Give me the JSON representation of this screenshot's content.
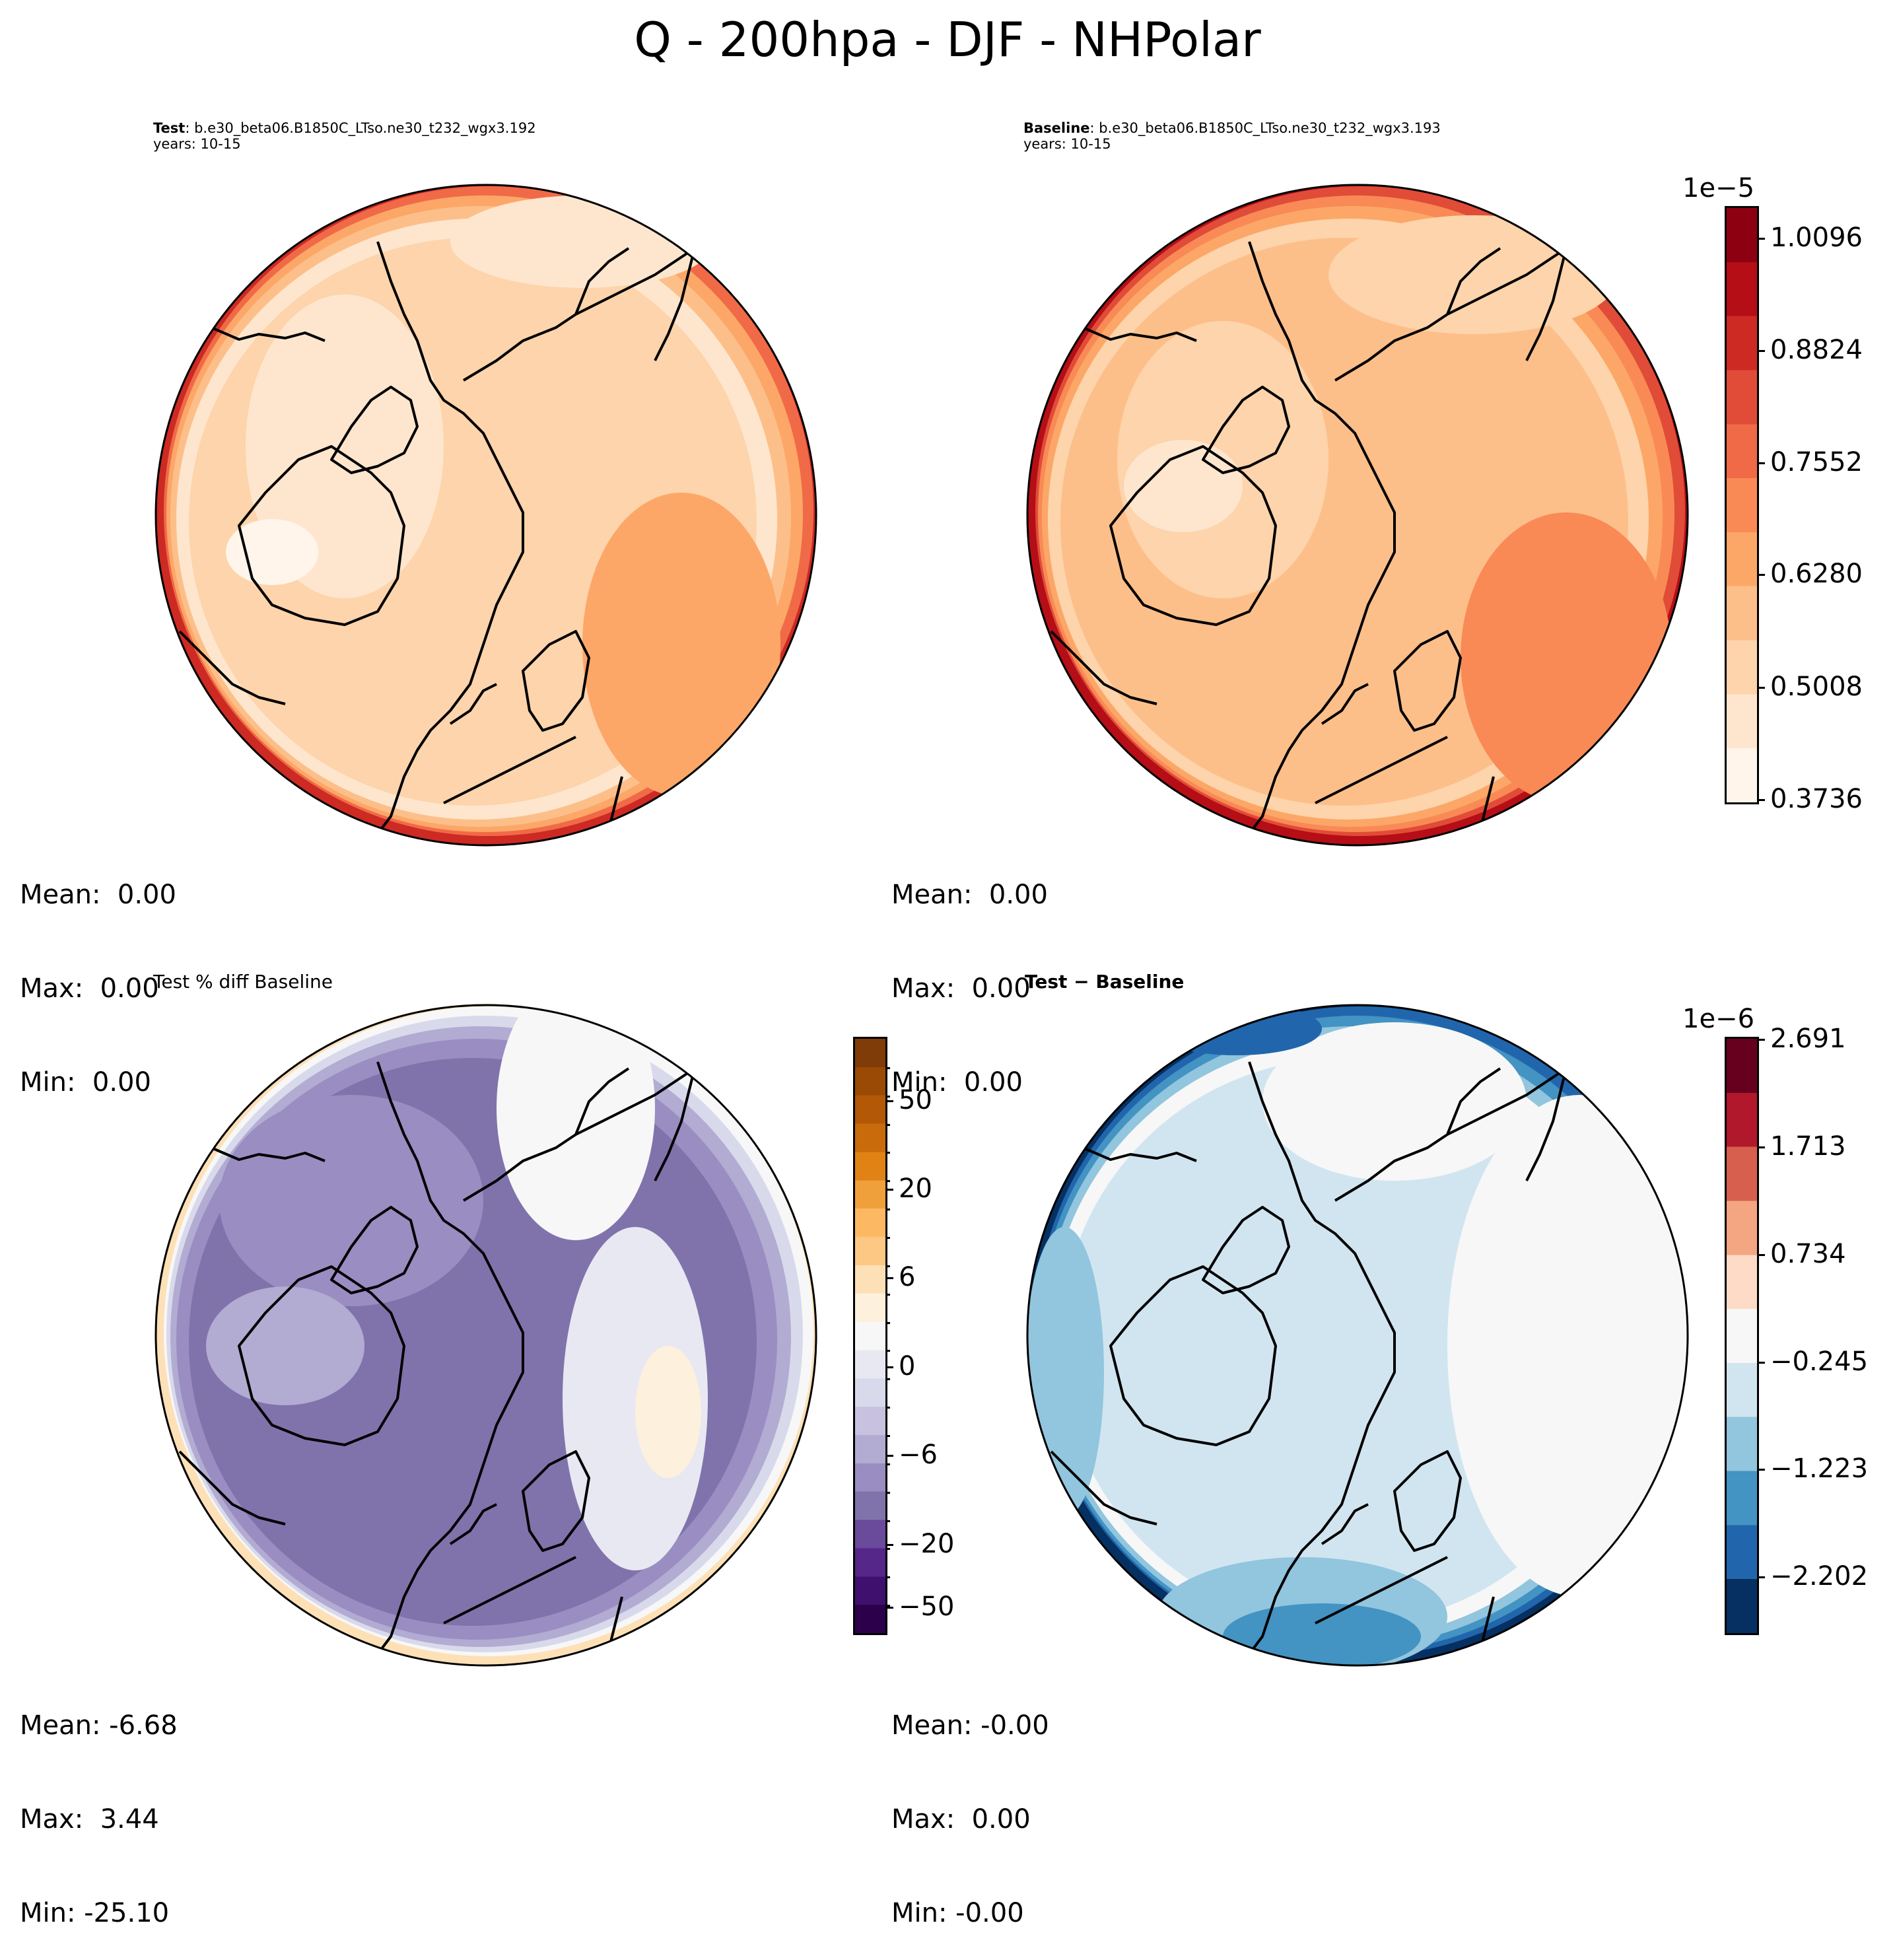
{
  "figure_title": "Q - 200hpa - DJF - NHPolar",
  "panels": {
    "test": {
      "label": "Test",
      "case": ": b.e30_beta06.B1850C_LTso.ne30_t232_wgx3.192",
      "years": "years: 10-15",
      "stats": {
        "mean": "Mean:  0.00",
        "max": "Max:  0.00",
        "min": "Min:  0.00"
      }
    },
    "baseline": {
      "label": "Baseline",
      "case": ": b.e30_beta06.B1850C_LTso.ne30_t232_wgx3.193",
      "years": "years: 10-15",
      "stats": {
        "mean": "Mean:  0.00",
        "max": "Max:  0.00",
        "min": "Min:  0.00"
      }
    },
    "pctdiff": {
      "title": "Test % diff Baseline",
      "stats": {
        "mean": "Mean: -6.68",
        "max": "Max:  3.44",
        "min": "Min: -25.10"
      }
    },
    "diff": {
      "title": "Test − Baseline",
      "stats": {
        "mean": "Mean: -0.00",
        "max": "Max:  0.00",
        "min": "Min: -0.00"
      }
    }
  },
  "colorbars": {
    "main": {
      "exponent": "1e−5",
      "labels": [
        "1.0096",
        "0.8824",
        "0.7552",
        "0.6280",
        "0.5008",
        "0.3736"
      ],
      "colors": [
        "#fff5eb",
        "#fee6ce",
        "#fdd4ab",
        "#fdbf8a",
        "#fca768",
        "#f98a56",
        "#f06a47",
        "#e04c38",
        "#cc2a23",
        "#b50e16",
        "#8c0012"
      ]
    },
    "pct": {
      "labels": [
        "50",
        "20",
        "6",
        "0",
        "−6",
        "−20",
        "−50"
      ],
      "colors": [
        "#2d004b",
        "#40106e",
        "#542788",
        "#6a4a9b",
        "#8073ac",
        "#9a8dc2",
        "#b2abd2",
        "#c8c2e0",
        "#d8daeb",
        "#e8e8f2",
        "#f7f7f7",
        "#fdf0dc",
        "#fee0b6",
        "#fdc884",
        "#fdb863",
        "#f0a03b",
        "#e08214",
        "#c96a0b",
        "#b35806",
        "#9a4a05",
        "#7f3b08"
      ]
    },
    "diff": {
      "exponent": "1e−6",
      "labels": [
        "2.691",
        "1.713",
        "0.734",
        "−0.245",
        "−1.223",
        "−2.202"
      ],
      "colors": [
        "#053061",
        "#2166ac",
        "#4393c3",
        "#92c5de",
        "#d1e5f0",
        "#f7f7f7",
        "#fddbc7",
        "#f4a582",
        "#d6604d",
        "#b2182b",
        "#67001f"
      ]
    }
  },
  "map_fields": {
    "test": {
      "base": "#fdd4ab",
      "ring": [
        "#fee6ce",
        "#fdbf8a",
        "#fca768",
        "#f06a47",
        "#cc2a23"
      ]
    },
    "baseline": {
      "base": "#fdbf8a",
      "ring": [
        "#fdd4ab",
        "#fca768",
        "#f98a56",
        "#e04c38",
        "#b50e16"
      ]
    },
    "pctdiff": {
      "base": "#8073ac",
      "ring": [
        "#9a8dc2",
        "#b2abd2",
        "#d8daeb",
        "#f7f7f7",
        "#fee0b6"
      ]
    },
    "diff": {
      "base": "#d1e5f0",
      "ring": [
        "#f7f7f7",
        "#92c5de",
        "#4393c3",
        "#2166ac",
        "#053061"
      ]
    }
  }
}
